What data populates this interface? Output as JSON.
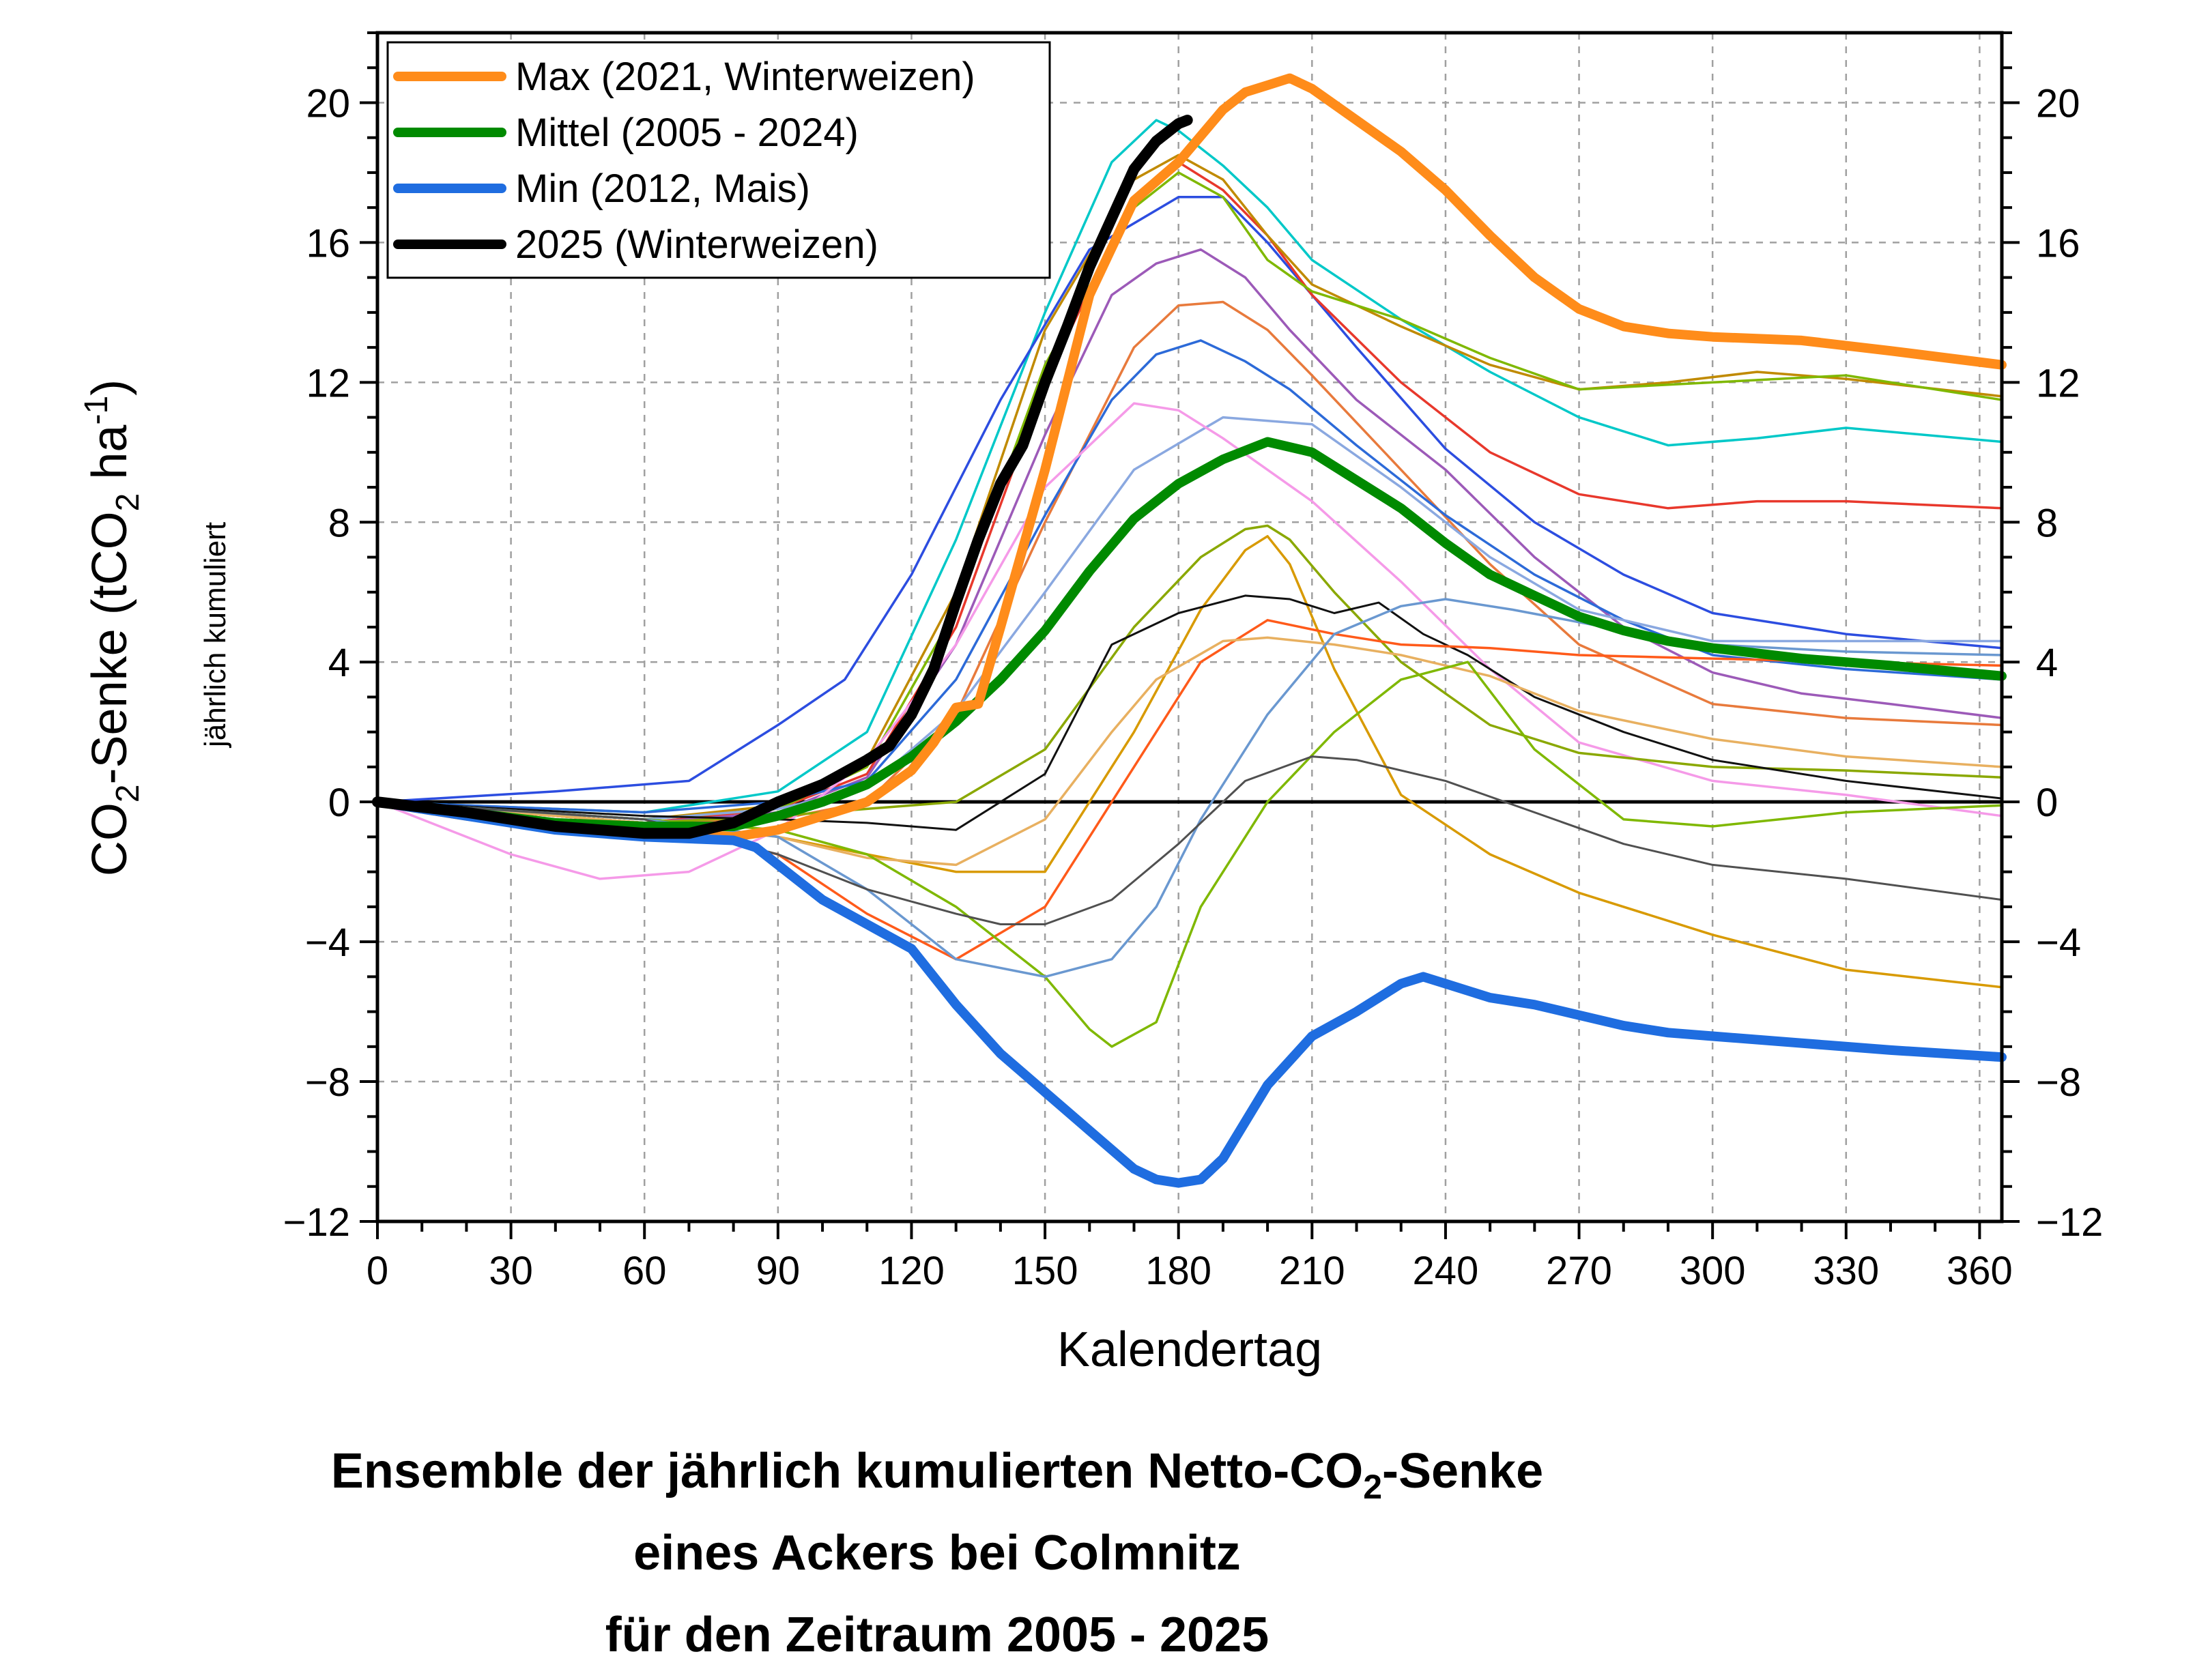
{
  "chart_data": {
    "type": "line",
    "xlabel": "Kalendertag",
    "ylabel": {
      "main": "CO",
      "sub": "2",
      "rest": "-Senke (tCO",
      "sub2": "2",
      "rest2": " ha",
      "sup": "-1",
      "close": ")"
    },
    "ylabel_secondary": "jährlich kumuliert",
    "xlim": [
      0,
      365
    ],
    "ylim": [
      -12,
      22
    ],
    "x_ticks": [
      0,
      30,
      60,
      90,
      120,
      150,
      180,
      210,
      240,
      270,
      300,
      330,
      360
    ],
    "y_ticks": [
      -12,
      -8,
      -4,
      0,
      4,
      8,
      12,
      16,
      20
    ],
    "y_tick_labels": [
      "−12",
      "−8",
      "−4",
      "0",
      "4",
      "8",
      "12",
      "16",
      "20"
    ],
    "grid": true,
    "legend_position": "top-left",
    "title_lines": [
      {
        "pre": "Ensemble der jährlich kumulierten Netto-CO",
        "sub": "2",
        "post": "-Senke"
      },
      {
        "pre": "eines Ackers bei Colmnitz",
        "sub": "",
        "post": ""
      },
      {
        "pre": "für den Zeitraum 2005 - 2025",
        "sub": "",
        "post": ""
      }
    ],
    "series": [
      {
        "name": "Max (2021, Winterweizen)",
        "color": "#ff8c1a",
        "width": 14,
        "legend": true,
        "x": [
          0,
          20,
          40,
          60,
          80,
          90,
          100,
          110,
          120,
          125,
          130,
          135,
          140,
          150,
          160,
          170,
          180,
          190,
          195,
          200,
          205,
          210,
          220,
          230,
          240,
          250,
          260,
          270,
          280,
          290,
          300,
          320,
          340,
          365
        ],
        "y": [
          0,
          -0.4,
          -0.7,
          -0.9,
          -1.0,
          -0.8,
          -0.4,
          0,
          0.9,
          1.7,
          2.7,
          2.8,
          5.0,
          9.5,
          14.5,
          17.2,
          18.3,
          19.8,
          20.3,
          20.5,
          20.7,
          20.4,
          19.5,
          18.6,
          17.5,
          16.2,
          15.0,
          14.1,
          13.6,
          13.4,
          13.3,
          13.2,
          12.9,
          12.5
        ]
      },
      {
        "name": "Mittel (2005 - 2024)",
        "color": "#008a00",
        "width": 14,
        "legend": true,
        "x": [
          0,
          20,
          40,
          60,
          80,
          90,
          100,
          110,
          120,
          130,
          140,
          150,
          160,
          170,
          180,
          190,
          200,
          210,
          220,
          230,
          240,
          250,
          260,
          270,
          280,
          290,
          300,
          320,
          340,
          365
        ],
        "y": [
          0,
          -0.3,
          -0.6,
          -0.7,
          -0.7,
          -0.4,
          0,
          0.5,
          1.3,
          2.3,
          3.5,
          4.9,
          6.6,
          8.1,
          9.1,
          9.8,
          10.3,
          10.0,
          9.2,
          8.4,
          7.4,
          6.5,
          5.9,
          5.3,
          4.9,
          4.6,
          4.4,
          4.1,
          3.9,
          3.6
        ]
      },
      {
        "name": "Min (2012, Mais)",
        "color": "#1f6de0",
        "width": 14,
        "legend": true,
        "x": [
          0,
          20,
          40,
          60,
          80,
          85,
          90,
          100,
          110,
          120,
          130,
          140,
          150,
          160,
          170,
          175,
          180,
          185,
          190,
          200,
          210,
          220,
          230,
          235,
          240,
          250,
          260,
          270,
          280,
          290,
          300,
          320,
          340,
          365
        ],
        "y": [
          0,
          -0.4,
          -0.8,
          -1.0,
          -1.1,
          -1.3,
          -1.8,
          -2.8,
          -3.5,
          -4.2,
          -5.8,
          -7.2,
          -8.3,
          -9.4,
          -10.5,
          -10.8,
          -10.9,
          -10.8,
          -10.2,
          -8.1,
          -6.7,
          -6.0,
          -5.2,
          -5.0,
          -5.2,
          -5.6,
          -5.8,
          -6.1,
          -6.4,
          -6.6,
          -6.7,
          -6.9,
          -7.1,
          -7.3
        ]
      },
      {
        "name": "2025 (Winterweizen)",
        "color": "#000000",
        "width": 16,
        "legend": true,
        "x": [
          0,
          20,
          40,
          60,
          70,
          80,
          90,
          100,
          110,
          115,
          120,
          125,
          130,
          135,
          140,
          145,
          150,
          155,
          160,
          165,
          170,
          175,
          180,
          182
        ],
        "y": [
          0,
          -0.3,
          -0.7,
          -0.9,
          -0.9,
          -0.6,
          0,
          0.5,
          1.2,
          1.6,
          2.5,
          3.8,
          5.7,
          7.5,
          9.1,
          10.2,
          12.0,
          13.6,
          15.3,
          16.7,
          18.1,
          18.9,
          19.4,
          19.5
        ]
      },
      {
        "color": "#00c8c8",
        "width": 3.5,
        "legend": false,
        "x": [
          0,
          60,
          90,
          110,
          130,
          150,
          165,
          175,
          180,
          190,
          200,
          210,
          230,
          250,
          270,
          290,
          310,
          330,
          365
        ],
        "y": [
          0,
          -0.3,
          0.3,
          2.0,
          7.5,
          14.0,
          18.3,
          19.5,
          19.2,
          18.2,
          17.0,
          15.5,
          13.8,
          12.3,
          11.0,
          10.2,
          10.4,
          10.7,
          10.3
        ]
      },
      {
        "color": "#2c4de0",
        "width": 3.5,
        "legend": false,
        "x": [
          0,
          40,
          70,
          90,
          105,
          120,
          140,
          160,
          180,
          190,
          200,
          220,
          240,
          260,
          280,
          300,
          330,
          365
        ],
        "y": [
          0,
          0.3,
          0.6,
          2.2,
          3.5,
          6.5,
          11.5,
          15.8,
          17.3,
          17.3,
          16.0,
          13.0,
          10.1,
          8.0,
          6.5,
          5.4,
          4.8,
          4.4
        ]
      },
      {
        "color": "#e8382c",
        "width": 3.5,
        "legend": false,
        "x": [
          0,
          60,
          90,
          110,
          130,
          150,
          170,
          180,
          190,
          200,
          210,
          230,
          250,
          270,
          290,
          310,
          330,
          365
        ],
        "y": [
          0,
          -0.6,
          -0.2,
          0.8,
          5.0,
          12.0,
          17.3,
          18.3,
          17.5,
          16.2,
          14.5,
          12.0,
          10.0,
          8.8,
          8.4,
          8.6,
          8.6,
          8.4
        ]
      },
      {
        "color": "#c08a00",
        "width": 3.5,
        "legend": false,
        "x": [
          0,
          60,
          90,
          110,
          130,
          150,
          170,
          180,
          190,
          200,
          210,
          230,
          250,
          270,
          290,
          310,
          330,
          365
        ],
        "y": [
          0,
          -0.5,
          -0.1,
          1.2,
          6.0,
          13.5,
          17.8,
          18.5,
          17.8,
          16.2,
          14.8,
          13.6,
          12.5,
          11.8,
          12.0,
          12.3,
          12.1,
          11.6
        ]
      },
      {
        "color": "#7fb800",
        "width": 3.5,
        "legend": false,
        "x": [
          0,
          60,
          90,
          110,
          130,
          150,
          170,
          180,
          190,
          200,
          210,
          230,
          250,
          270,
          300,
          330,
          365
        ],
        "y": [
          0,
          -0.5,
          -0.2,
          1.0,
          5.5,
          12.5,
          17.0,
          18.0,
          17.3,
          15.5,
          14.6,
          13.8,
          12.7,
          11.8,
          12.0,
          12.2,
          11.5
        ]
      },
      {
        "color": "#9c5ab8",
        "width": 3.5,
        "legend": false,
        "x": [
          0,
          60,
          90,
          110,
          130,
          150,
          165,
          175,
          185,
          195,
          205,
          220,
          240,
          260,
          280,
          300,
          320,
          340,
          365
        ],
        "y": [
          0,
          -0.6,
          -0.3,
          0.7,
          4.5,
          10.5,
          14.5,
          15.4,
          15.8,
          15.0,
          13.5,
          11.5,
          9.5,
          7.0,
          5.0,
          3.7,
          3.1,
          2.8,
          2.4
        ]
      },
      {
        "color": "#e87a3c",
        "width": 3.5,
        "legend": false,
        "x": [
          0,
          60,
          90,
          110,
          130,
          150,
          170,
          180,
          190,
          200,
          210,
          230,
          250,
          270,
          300,
          330,
          365
        ],
        "y": [
          0,
          -0.6,
          -0.5,
          0.0,
          2.5,
          8.0,
          13.0,
          14.2,
          14.3,
          13.5,
          12.2,
          9.5,
          6.8,
          4.5,
          2.8,
          2.4,
          2.2
        ]
      },
      {
        "color": "#2c6ad8",
        "width": 3.5,
        "legend": false,
        "x": [
          0,
          60,
          90,
          110,
          130,
          150,
          165,
          175,
          185,
          195,
          205,
          220,
          240,
          260,
          280,
          300,
          330,
          365
        ],
        "y": [
          0,
          -0.3,
          0.0,
          0.6,
          3.5,
          8.2,
          11.5,
          12.8,
          13.2,
          12.6,
          11.8,
          10.2,
          8.2,
          6.5,
          5.2,
          4.2,
          3.8,
          3.5
        ]
      },
      {
        "color": "#8aa8e0",
        "width": 3.5,
        "legend": false,
        "x": [
          0,
          60,
          90,
          110,
          130,
          150,
          170,
          190,
          210,
          230,
          250,
          270,
          300,
          330,
          365
        ],
        "y": [
          0,
          -0.5,
          -0.2,
          0.4,
          2.6,
          6.0,
          9.5,
          11.0,
          10.8,
          9.0,
          7.0,
          5.5,
          4.6,
          4.6,
          4.6
        ]
      },
      {
        "color": "#f59ae8",
        "width": 3.5,
        "legend": false,
        "x": [
          0,
          30,
          50,
          70,
          90,
          110,
          130,
          150,
          170,
          180,
          190,
          210,
          230,
          250,
          270,
          300,
          330,
          365
        ],
        "y": [
          0,
          -1.5,
          -2.2,
          -2.0,
          -0.8,
          1.2,
          4.5,
          9.0,
          11.4,
          11.2,
          10.4,
          8.6,
          6.3,
          3.8,
          1.7,
          0.6,
          0.2,
          -0.4
        ]
      },
      {
        "color": "#8aa800",
        "width": 3.5,
        "legend": false,
        "x": [
          0,
          60,
          90,
          110,
          130,
          150,
          170,
          185,
          195,
          200,
          205,
          215,
          230,
          250,
          270,
          300,
          330,
          365
        ],
        "y": [
          0,
          -0.6,
          -0.4,
          -0.2,
          0.0,
          1.5,
          5.0,
          7.0,
          7.8,
          7.9,
          7.5,
          6.0,
          4.0,
          2.2,
          1.4,
          1.0,
          0.9,
          0.7
        ]
      },
      {
        "color": "#d89a00",
        "width": 3.5,
        "legend": false,
        "x": [
          0,
          60,
          90,
          110,
          130,
          150,
          170,
          185,
          195,
          200,
          205,
          215,
          230,
          250,
          270,
          300,
          330,
          365
        ],
        "y": [
          0,
          -0.5,
          -1.0,
          -1.5,
          -2.0,
          -2.0,
          2.0,
          5.5,
          7.2,
          7.6,
          6.8,
          3.8,
          0.2,
          -1.5,
          -2.6,
          -3.8,
          -4.8,
          -5.3
        ]
      },
      {
        "color": "#111111",
        "width": 3,
        "legend": false,
        "x": [
          0,
          60,
          90,
          110,
          130,
          150,
          165,
          180,
          195,
          205,
          215,
          225,
          235,
          245,
          260,
          280,
          300,
          330,
          365
        ],
        "y": [
          0,
          -0.4,
          -0.5,
          -0.6,
          -0.8,
          0.8,
          4.5,
          5.4,
          5.9,
          5.8,
          5.4,
          5.7,
          4.8,
          4.2,
          3.0,
          2.0,
          1.2,
          0.6,
          0.1
        ]
      },
      {
        "color": "#ff5a1a",
        "width": 3.5,
        "legend": false,
        "x": [
          0,
          60,
          90,
          110,
          130,
          150,
          170,
          185,
          200,
          215,
          230,
          250,
          270,
          300,
          330,
          365
        ],
        "y": [
          0,
          -0.6,
          -1.5,
          -3.2,
          -4.5,
          -3.0,
          1.0,
          4.0,
          5.2,
          4.8,
          4.5,
          4.4,
          4.2,
          4.1,
          4.0,
          3.9
        ]
      },
      {
        "color": "#e8b060",
        "width": 3.5,
        "legend": false,
        "x": [
          0,
          60,
          90,
          110,
          130,
          150,
          165,
          175,
          190,
          200,
          215,
          230,
          250,
          270,
          300,
          330,
          365
        ],
        "y": [
          0,
          -0.6,
          -1.0,
          -1.6,
          -1.8,
          -0.5,
          2.0,
          3.5,
          4.6,
          4.7,
          4.5,
          4.2,
          3.6,
          2.6,
          1.8,
          1.3,
          1.0
        ]
      },
      {
        "color": "#7fb800",
        "width": 3.5,
        "legend": false,
        "x": [
          0,
          60,
          90,
          110,
          130,
          150,
          160,
          165,
          175,
          185,
          200,
          215,
          230,
          245,
          260,
          280,
          300,
          330,
          365
        ],
        "y": [
          0,
          -0.5,
          -0.8,
          -1.5,
          -3.0,
          -5.0,
          -6.5,
          -7.0,
          -6.3,
          -3.0,
          0.0,
          2.0,
          3.5,
          4.0,
          1.5,
          -0.5,
          -0.7,
          -0.3,
          -0.1
        ]
      },
      {
        "color": "#6a98d0",
        "width": 3.5,
        "legend": false,
        "x": [
          0,
          60,
          90,
          110,
          130,
          150,
          165,
          175,
          185,
          200,
          215,
          230,
          240,
          255,
          280,
          300,
          330,
          365
        ],
        "y": [
          0,
          -0.5,
          -1.0,
          -2.5,
          -4.5,
          -5.0,
          -4.5,
          -3.0,
          -0.5,
          2.5,
          4.8,
          5.6,
          5.8,
          5.5,
          4.9,
          4.5,
          4.3,
          4.2
        ]
      },
      {
        "color": "#505050",
        "width": 3,
        "legend": false,
        "x": [
          0,
          60,
          90,
          110,
          130,
          140,
          150,
          165,
          180,
          195,
          210,
          220,
          240,
          260,
          280,
          300,
          330,
          365
        ],
        "y": [
          0,
          -0.5,
          -1.5,
          -2.5,
          -3.2,
          -3.5,
          -3.5,
          -2.8,
          -1.2,
          0.6,
          1.3,
          1.2,
          0.6,
          -0.3,
          -1.2,
          -1.8,
          -2.2,
          -2.8
        ]
      }
    ]
  }
}
